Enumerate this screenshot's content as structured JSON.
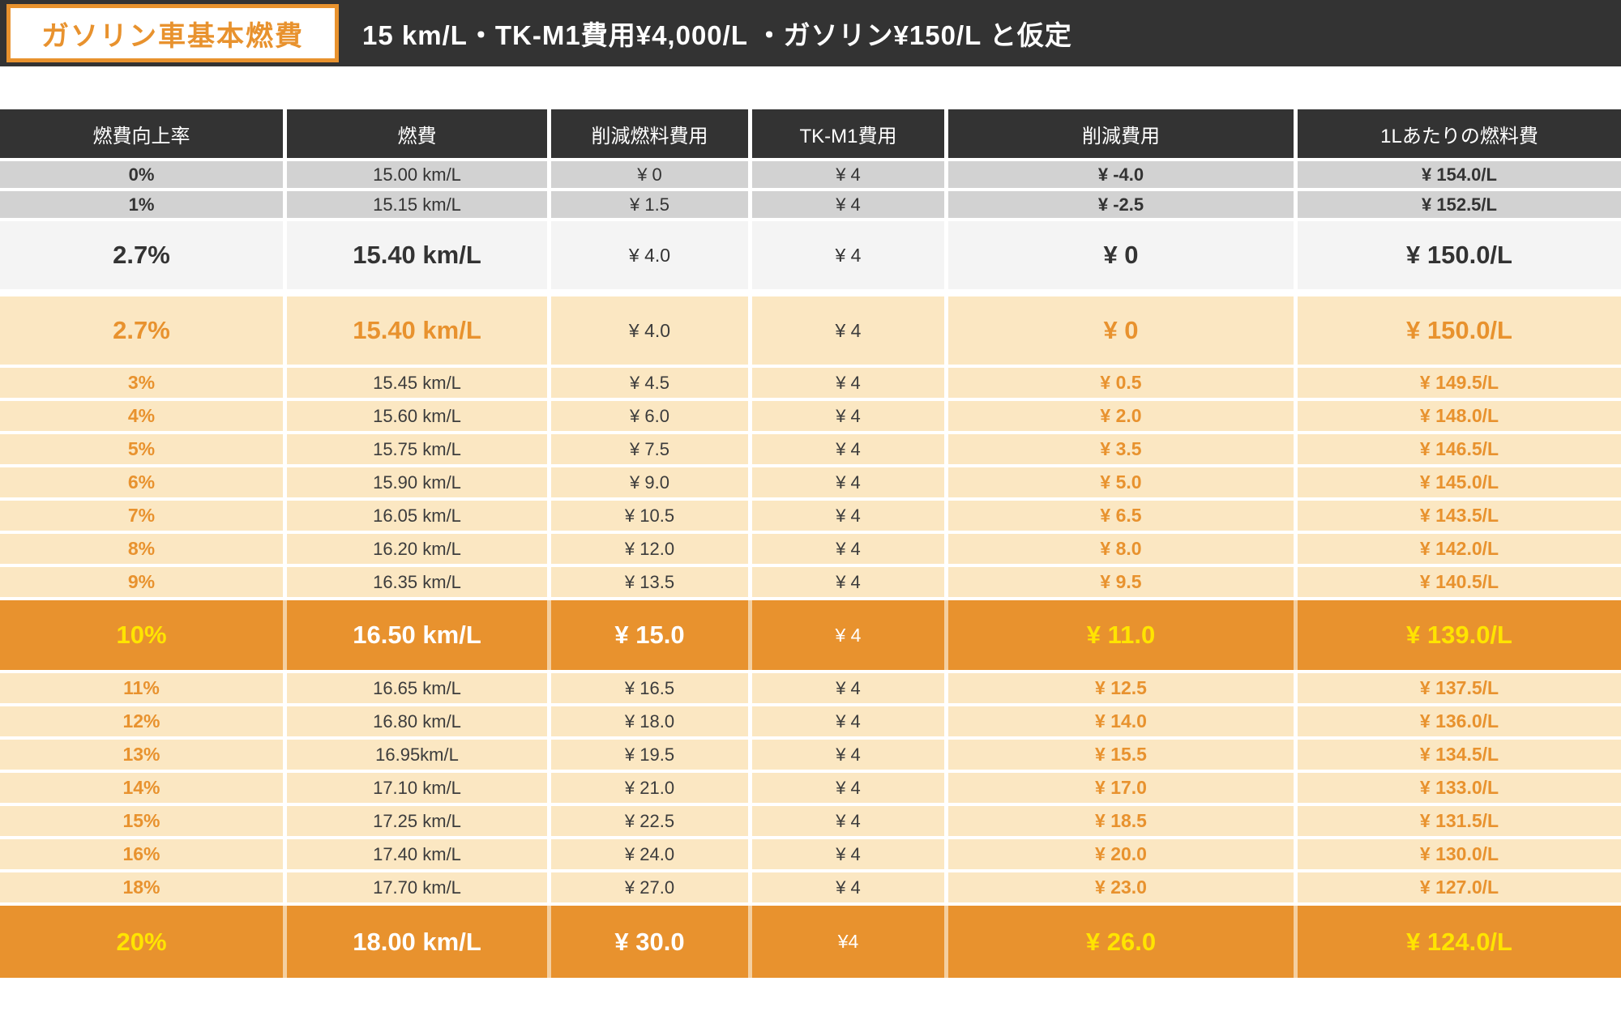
{
  "header": {
    "badge_label": "ガソリン車基本燃費",
    "title": "15 km/L・TK-M1費用¥4,000/L ・ガソリン¥150/L と仮定"
  },
  "colors": {
    "band_dark": "#333333",
    "accent_orange": "#e8922e",
    "row_cream": "#fbe7c2",
    "row_gray": "#d2d2d2",
    "row_light": "#f4f4f4",
    "highlight_yellow": "#ffe400"
  },
  "table": {
    "columns": [
      "燃費向上率",
      "燃費",
      "削減燃料費用",
      "TK-M1費用",
      "削減費用",
      "1Lあたりの燃料費"
    ],
    "rows": [
      {
        "style": "gray",
        "cells": [
          "0%",
          "15.00 km/L",
          "¥ 0",
          "¥ 4",
          "¥ -4.0",
          "¥ 154.0/L"
        ]
      },
      {
        "style": "gray",
        "cells": [
          "1%",
          "15.15 km/L",
          "¥ 1.5",
          "¥ 4",
          "¥ -2.5",
          "¥ 152.5/L"
        ]
      },
      {
        "style": "lightbig",
        "cells": [
          "2.7%",
          "15.40 km/L",
          "¥ 4.0",
          "¥ 4",
          "¥ 0",
          "¥ 150.0/L"
        ]
      },
      {
        "style": "creambig",
        "cells": [
          "2.7%",
          "15.40 km/L",
          "¥ 4.0",
          "¥ 4",
          "¥ 0",
          "¥ 150.0/L"
        ]
      },
      {
        "style": "cream",
        "cells": [
          "3%",
          "15.45 km/L",
          "¥ 4.5",
          "¥ 4",
          "¥ 0.5",
          "¥ 149.5/L"
        ]
      },
      {
        "style": "cream",
        "cells": [
          "4%",
          "15.60 km/L",
          "¥ 6.0",
          "¥ 4",
          "¥ 2.0",
          "¥ 148.0/L"
        ]
      },
      {
        "style": "cream",
        "cells": [
          "5%",
          "15.75 km/L",
          "¥ 7.5",
          "¥ 4",
          "¥ 3.5",
          "¥ 146.5/L"
        ]
      },
      {
        "style": "cream",
        "cells": [
          "6%",
          "15.90 km/L",
          "¥ 9.0",
          "¥ 4",
          "¥ 5.0",
          "¥ 145.0/L"
        ]
      },
      {
        "style": "cream",
        "cells": [
          "7%",
          "16.05 km/L",
          "¥ 10.5",
          "¥ 4",
          "¥ 6.5",
          "¥ 143.5/L"
        ]
      },
      {
        "style": "cream",
        "cells": [
          "8%",
          "16.20 km/L",
          "¥ 12.0",
          "¥ 4",
          "¥ 8.0",
          "¥ 142.0/L"
        ]
      },
      {
        "style": "cream",
        "cells": [
          "9%",
          "16.35 km/L",
          "¥ 13.5",
          "¥ 4",
          "¥ 9.5",
          "¥ 140.5/L"
        ]
      },
      {
        "style": "orange",
        "cells": [
          "10%",
          "16.50 km/L",
          "¥ 15.0",
          "¥ 4",
          "¥ 11.0",
          "¥ 139.0/L"
        ]
      },
      {
        "style": "cream",
        "cells": [
          "11%",
          "16.65 km/L",
          "¥ 16.5",
          "¥ 4",
          "¥ 12.5",
          "¥ 137.5/L"
        ]
      },
      {
        "style": "cream",
        "cells": [
          "12%",
          "16.80 km/L",
          "¥ 18.0",
          "¥ 4",
          "¥ 14.0",
          "¥ 136.0/L"
        ]
      },
      {
        "style": "cream",
        "cells": [
          "13%",
          "16.95km/L",
          "¥ 19.5",
          "¥ 4",
          "¥ 15.5",
          "¥ 134.5/L"
        ]
      },
      {
        "style": "cream",
        "cells": [
          "14%",
          "17.10 km/L",
          "¥ 21.0",
          "¥ 4",
          "¥ 17.0",
          "¥ 133.0/L"
        ]
      },
      {
        "style": "cream",
        "cells": [
          "15%",
          "17.25 km/L",
          "¥ 22.5",
          "¥ 4",
          "¥ 18.5",
          "¥ 131.5/L"
        ]
      },
      {
        "style": "cream",
        "cells": [
          "16%",
          "17.40 km/L",
          "¥ 24.0",
          "¥ 4",
          "¥ 20.0",
          "¥ 130.0/L"
        ]
      },
      {
        "style": "cream",
        "cells": [
          "18%",
          "17.70 km/L",
          "¥ 27.0",
          "¥ 4",
          "¥ 23.0",
          "¥ 127.0/L"
        ]
      },
      {
        "style": "orange",
        "cells": [
          "20%",
          "18.00 km/L",
          "¥ 30.0",
          "¥4",
          "¥ 26.0",
          "¥ 124.0/L"
        ]
      }
    ]
  },
  "chart_data": {
    "type": "table",
    "title": "ガソリン車基本燃費 — 15 km/L・TK-M1費用¥4,000/L ・ガソリン¥150/L と仮定",
    "columns": [
      "燃費向上率",
      "燃費",
      "削減燃料費用",
      "TK-M1費用",
      "削減費用",
      "1Lあたりの燃料費"
    ],
    "rows": [
      [
        "0%",
        "15.00 km/L",
        "¥ 0",
        "¥ 4",
        "¥ -4.0",
        "¥ 154.0/L"
      ],
      [
        "1%",
        "15.15 km/L",
        "¥ 1.5",
        "¥ 4",
        "¥ -2.5",
        "¥ 152.5/L"
      ],
      [
        "2.7%",
        "15.40 km/L",
        "¥ 4.0",
        "¥ 4",
        "¥ 0",
        "¥ 150.0/L"
      ],
      [
        "2.7%",
        "15.40 km/L",
        "¥ 4.0",
        "¥ 4",
        "¥ 0",
        "¥ 150.0/L"
      ],
      [
        "3%",
        "15.45 km/L",
        "¥ 4.5",
        "¥ 4",
        "¥ 0.5",
        "¥ 149.5/L"
      ],
      [
        "4%",
        "15.60 km/L",
        "¥ 6.0",
        "¥ 4",
        "¥ 2.0",
        "¥ 148.0/L"
      ],
      [
        "5%",
        "15.75 km/L",
        "¥ 7.5",
        "¥ 4",
        "¥ 3.5",
        "¥ 146.5/L"
      ],
      [
        "6%",
        "15.90 km/L",
        "¥ 9.0",
        "¥ 4",
        "¥ 5.0",
        "¥ 145.0/L"
      ],
      [
        "7%",
        "16.05 km/L",
        "¥ 10.5",
        "¥ 4",
        "¥ 6.5",
        "¥ 143.5/L"
      ],
      [
        "8%",
        "16.20 km/L",
        "¥ 12.0",
        "¥ 4",
        "¥ 8.0",
        "¥ 142.0/L"
      ],
      [
        "9%",
        "16.35 km/L",
        "¥ 13.5",
        "¥ 4",
        "¥ 9.5",
        "¥ 140.5/L"
      ],
      [
        "10%",
        "16.50 km/L",
        "¥ 15.0",
        "¥ 4",
        "¥ 11.0",
        "¥ 139.0/L"
      ],
      [
        "11%",
        "16.65 km/L",
        "¥ 16.5",
        "¥ 4",
        "¥ 12.5",
        "¥ 137.5/L"
      ],
      [
        "12%",
        "16.80 km/L",
        "¥ 18.0",
        "¥ 4",
        "¥ 14.0",
        "¥ 136.0/L"
      ],
      [
        "13%",
        "16.95km/L",
        "¥ 19.5",
        "¥ 4",
        "¥ 15.5",
        "¥ 134.5/L"
      ],
      [
        "14%",
        "17.10 km/L",
        "¥ 21.0",
        "¥ 4",
        "¥ 17.0",
        "¥ 133.0/L"
      ],
      [
        "15%",
        "17.25 km/L",
        "¥ 22.5",
        "¥ 4",
        "¥ 18.5",
        "¥ 131.5/L"
      ],
      [
        "16%",
        "17.40 km/L",
        "¥ 24.0",
        "¥ 4",
        "¥ 20.0",
        "¥ 130.0/L"
      ],
      [
        "18%",
        "17.70 km/L",
        "¥ 27.0",
        "¥ 4",
        "¥ 23.0",
        "¥ 127.0/L"
      ],
      [
        "20%",
        "18.00 km/L",
        "¥ 30.0",
        "¥4",
        "¥ 26.0",
        "¥ 124.0/L"
      ]
    ],
    "highlighted_rows": [
      "2.7%",
      "10%",
      "20%"
    ],
    "legend_position": "none",
    "grid": false
  }
}
